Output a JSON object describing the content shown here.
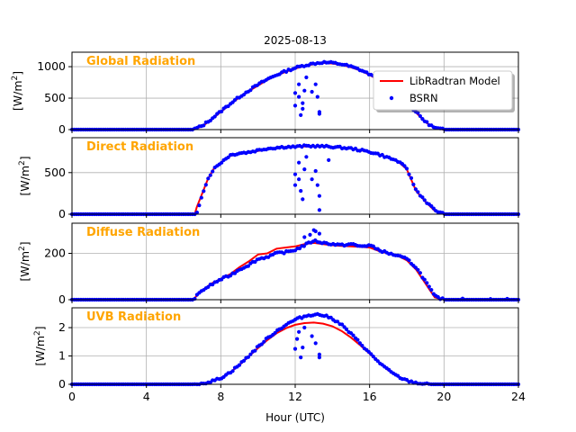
{
  "figure": {
    "title": "2025-08-13",
    "xlabel": "Hour (UTC)",
    "xlim": [
      0,
      24
    ],
    "xticks": [
      0,
      4,
      8,
      12,
      16,
      20,
      24
    ],
    "legend": {
      "placement": "top-right",
      "entries": [
        "LibRadtran Model",
        "BSRN"
      ]
    }
  },
  "colors": {
    "model": "#ff0000",
    "bsrn": "#0000ff",
    "panel_label": "#ffa500",
    "grid": "#b0b0b0"
  },
  "chart_data": [
    {
      "type": "line",
      "title": "Global Radiation",
      "ylabel": "[W/m2]",
      "ylim": [
        0,
        1230
      ],
      "yticks": [
        0,
        500,
        1000
      ],
      "x": [
        0,
        6.5,
        7,
        7.5,
        8,
        8.5,
        9,
        9.5,
        10,
        10.5,
        11,
        11.5,
        12,
        12.5,
        13,
        13.5,
        14,
        14.5,
        15,
        15.5,
        16,
        16.5,
        17,
        17.5,
        18,
        18.5,
        19,
        19.5,
        20,
        24
      ],
      "series": [
        {
          "name": "LibRadtran Model",
          "values": [
            0,
            0,
            50,
            160,
            280,
            400,
            510,
            610,
            700,
            790,
            860,
            920,
            970,
            1010,
            1040,
            1060,
            1050,
            1030,
            990,
            940,
            870,
            780,
            680,
            560,
            420,
            270,
            120,
            20,
            0,
            0
          ]
        },
        {
          "name": "BSRN",
          "values": [
            0,
            0,
            60,
            170,
            290,
            410,
            520,
            620,
            715,
            800,
            870,
            930,
            980,
            1020,
            1050,
            1070,
            1060,
            1040,
            1000,
            950,
            880,
            790,
            690,
            570,
            430,
            280,
            125,
            25,
            0,
            0
          ]
        }
      ],
      "bsrn_outliers": [
        [
          12.0,
          380
        ],
        [
          12.0,
          580
        ],
        [
          12.2,
          720
        ],
        [
          12.2,
          520
        ],
        [
          12.3,
          230
        ],
        [
          12.4,
          330
        ],
        [
          12.4,
          420
        ],
        [
          12.5,
          620
        ],
        [
          12.6,
          830
        ],
        [
          12.9,
          600
        ],
        [
          13.1,
          720
        ],
        [
          13.2,
          520
        ],
        [
          13.3,
          280
        ],
        [
          13.3,
          250
        ]
      ]
    },
    {
      "type": "line",
      "title": "Direct Radiation",
      "ylabel": "[W/m2]",
      "ylim": [
        0,
        920
      ],
      "yticks": [
        0,
        500
      ],
      "x": [
        0,
        6.6,
        6.7,
        7,
        7.3,
        7.6,
        8,
        8.5,
        9,
        9.5,
        10,
        10.5,
        11,
        11.5,
        12,
        12.5,
        13,
        13.5,
        14,
        14.5,
        15,
        15.5,
        16,
        16.5,
        17,
        17.5,
        18,
        18.5,
        19,
        19.5,
        20,
        24
      ],
      "series": [
        {
          "name": "LibRadtran Model",
          "values": [
            0,
            0,
            80,
            250,
            420,
            540,
            620,
            700,
            730,
            745,
            760,
            780,
            800,
            810,
            810,
            815,
            815,
            815,
            810,
            800,
            790,
            770,
            750,
            720,
            680,
            640,
            540,
            280,
            150,
            40,
            0,
            0
          ]
        },
        {
          "name": "BSRN",
          "values": [
            0,
            0,
            0,
            240,
            420,
            540,
            620,
            710,
            735,
            745,
            770,
            790,
            800,
            810,
            810,
            820,
            820,
            815,
            810,
            800,
            790,
            770,
            750,
            720,
            680,
            640,
            550,
            290,
            160,
            50,
            0,
            0
          ]
        }
      ],
      "bsrn_outliers": [
        [
          12.0,
          480
        ],
        [
          12.0,
          350
        ],
        [
          12.2,
          620
        ],
        [
          12.2,
          420
        ],
        [
          12.3,
          280
        ],
        [
          12.4,
          180
        ],
        [
          12.5,
          540
        ],
        [
          12.6,
          690
        ],
        [
          12.9,
          420
        ],
        [
          13.1,
          520
        ],
        [
          13.2,
          350
        ],
        [
          13.3,
          220
        ],
        [
          13.3,
          50
        ],
        [
          13.8,
          650
        ]
      ]
    },
    {
      "type": "line",
      "title": "Diffuse Radiation",
      "ylabel": "[W/m2]",
      "ylim": [
        0,
        330
      ],
      "yticks": [
        0,
        200
      ],
      "x": [
        0,
        6.5,
        7,
        7.5,
        8,
        8.5,
        9,
        9.5,
        10,
        10.5,
        11,
        11.5,
        12,
        12.5,
        13,
        13.5,
        14,
        14.5,
        15,
        15.5,
        16,
        16.5,
        17,
        17.5,
        18,
        18.5,
        19,
        19.5,
        20,
        24
      ],
      "series": [
        {
          "name": "LibRadtran Model",
          "values": [
            0,
            0,
            40,
            70,
            90,
            110,
            140,
            165,
            195,
            200,
            220,
            225,
            230,
            240,
            245,
            240,
            235,
            232,
            230,
            228,
            225,
            210,
            200,
            190,
            170,
            130,
            70,
            10,
            0,
            0
          ]
        },
        {
          "name": "BSRN",
          "values": [
            0,
            0,
            40,
            65,
            88,
            105,
            130,
            150,
            175,
            185,
            200,
            205,
            215,
            235,
            255,
            245,
            240,
            235,
            240,
            230,
            235,
            215,
            200,
            190,
            175,
            140,
            80,
            15,
            0,
            0
          ]
        }
      ],
      "bsrn_outliers": [
        [
          12.5,
          270
        ],
        [
          12.8,
          280
        ],
        [
          13.0,
          300
        ],
        [
          13.1,
          295
        ],
        [
          13.3,
          285
        ],
        [
          21.0,
          5
        ],
        [
          22.5,
          3
        ],
        [
          23.4,
          4
        ]
      ]
    },
    {
      "type": "line",
      "title": "UVB Radiation",
      "ylabel": "[W/m2]",
      "ylim": [
        0,
        2.7
      ],
      "yticks": [
        0,
        1,
        2
      ],
      "x": [
        0,
        6.5,
        7,
        7.5,
        8,
        8.5,
        9,
        9.5,
        10,
        10.5,
        11,
        11.5,
        12,
        12.5,
        13,
        13.5,
        14,
        14.5,
        15,
        15.5,
        16,
        16.5,
        17,
        17.5,
        18,
        18.5,
        19,
        19.5,
        20,
        24
      ],
      "series": [
        {
          "name": "LibRadtran Model",
          "values": [
            0,
            0,
            0.03,
            0.1,
            0.22,
            0.42,
            0.68,
            0.98,
            1.28,
            1.56,
            1.8,
            1.98,
            2.1,
            2.16,
            2.18,
            2.14,
            2.05,
            1.88,
            1.65,
            1.38,
            1.08,
            0.78,
            0.5,
            0.28,
            0.13,
            0.05,
            0.01,
            0,
            0,
            0
          ]
        },
        {
          "name": "BSRN",
          "values": [
            0,
            0,
            0.03,
            0.1,
            0.22,
            0.42,
            0.69,
            1.0,
            1.32,
            1.62,
            1.88,
            2.1,
            2.28,
            2.4,
            2.47,
            2.44,
            2.32,
            2.1,
            1.78,
            1.45,
            1.1,
            0.78,
            0.5,
            0.28,
            0.13,
            0.05,
            0.01,
            0,
            0,
            0
          ]
        }
      ],
      "bsrn_outliers": [
        [
          12.0,
          1.25
        ],
        [
          12.1,
          1.6
        ],
        [
          12.2,
          1.85
        ],
        [
          12.3,
          0.95
        ],
        [
          12.4,
          1.3
        ],
        [
          12.5,
          2.0
        ],
        [
          12.9,
          1.7
        ],
        [
          13.1,
          1.45
        ],
        [
          13.3,
          1.05
        ],
        [
          13.3,
          0.95
        ]
      ]
    }
  ]
}
